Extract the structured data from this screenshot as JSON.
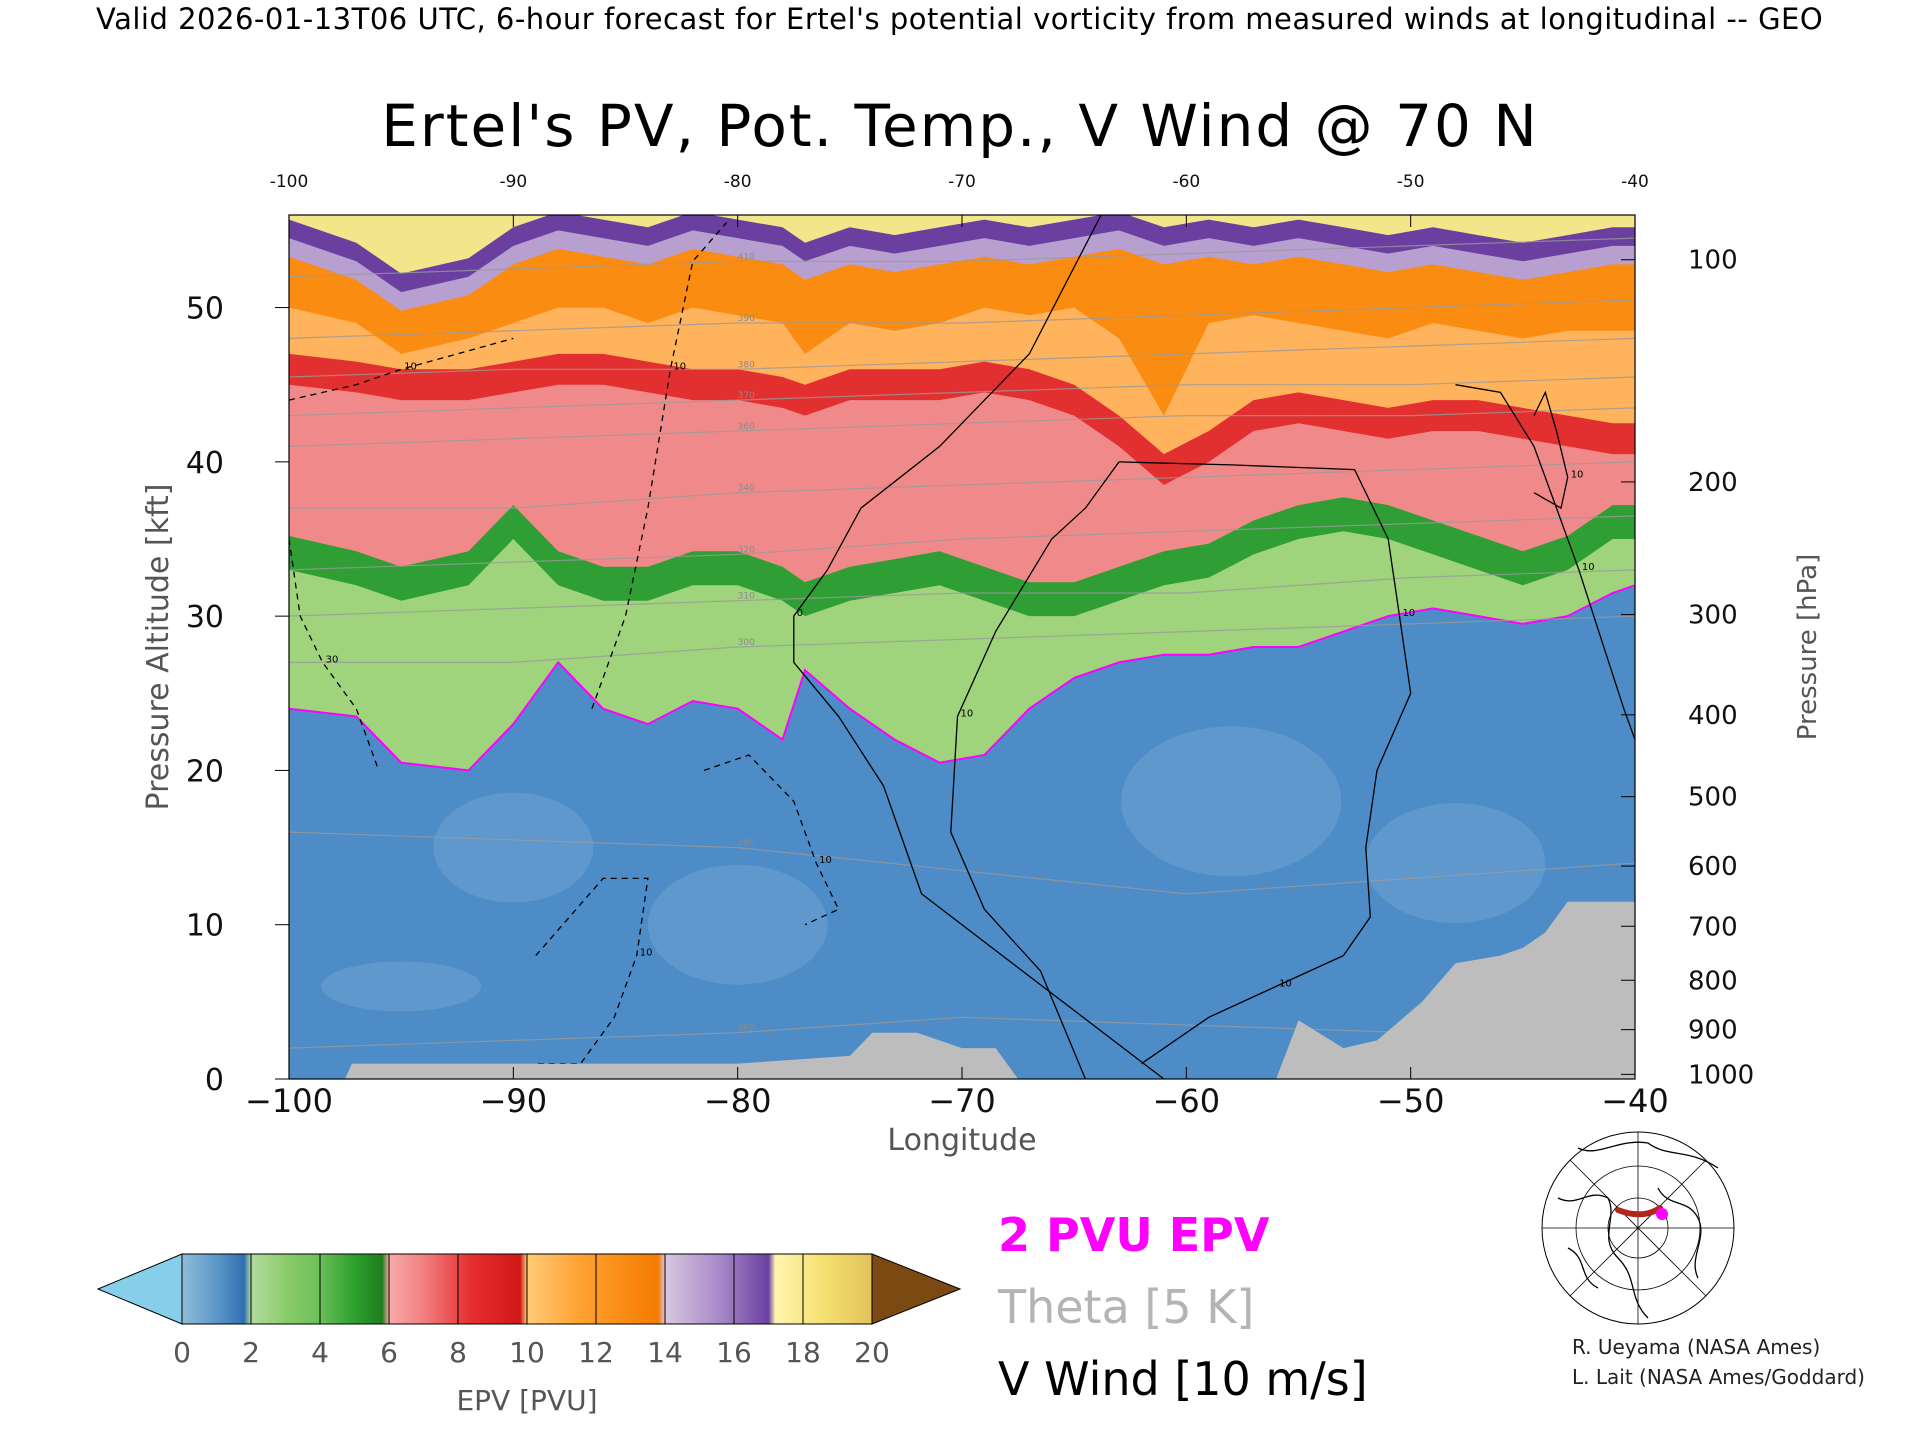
{
  "header": "Valid 2026-01-13T06 UTC, 6-hour forecast for Ertel's potential vorticity from measured winds at longitudinal -- GEO",
  "title": "Ertel's PV, Pot. Temp., V Wind @ 70 N",
  "credits": [
    "R. Ueyama (NASA Ames)",
    "L. Lait (NASA Ames/Goddard)"
  ],
  "legend": {
    "epv": "2 PVU EPV",
    "theta": "Theta [5 K]",
    "vwind": "V Wind [10 m/s]",
    "colors": {
      "epv": "#ff00ff",
      "theta": "#b4b4b4",
      "vwind": "#000000"
    }
  },
  "colorbar": {
    "label": "EPV [PVU]",
    "ticks": [
      "0",
      "2",
      "4",
      "6",
      "8",
      "10",
      "12",
      "14",
      "16",
      "18",
      "20"
    ],
    "under_color": "#87ceeb",
    "over_color": "#7b4a12"
  },
  "chart_data": {
    "type": "heatmap",
    "title": "Ertel's PV, Pot. Temp., V Wind @ 70 N",
    "xlabel": "Longitude",
    "ylabel": "Pressure Altitude [kft]",
    "y2label": "Pressure [hPa]",
    "xlim": [
      -100,
      -40
    ],
    "ylim": [
      0,
      56
    ],
    "x_ticks": [
      "-100",
      "-90",
      "-80",
      "-70",
      "-60",
      "-50",
      "-40"
    ],
    "x_ticks_top": [
      "-100",
      "-90",
      "-80",
      "-70",
      "-60",
      "-50",
      "-40"
    ],
    "y_ticks": [
      "0",
      "10",
      "20",
      "30",
      "40",
      "50"
    ],
    "pressure_ticks": [
      {
        "label": "100",
        "kft": 53.1
      },
      {
        "label": "200",
        "kft": 38.7
      },
      {
        "label": "300",
        "kft": 30.1
      },
      {
        "label": "400",
        "kft": 23.6
      },
      {
        "label": "500",
        "kft": 18.3
      },
      {
        "label": "600",
        "kft": 13.8
      },
      {
        "label": "700",
        "kft": 9.9
      },
      {
        "label": "800",
        "kft": 6.4
      },
      {
        "label": "900",
        "kft": 3.2
      },
      {
        "label": "1000",
        "kft": 0.3
      }
    ],
    "layers": [
      {
        "name": "stratosphere_top",
        "pvu_range": [
          16,
          20
        ]
      },
      {
        "name": "upper",
        "pvu_range": [
          10,
          14
        ]
      },
      {
        "name": "tropopause_region",
        "pvu_range": [
          6,
          10
        ]
      },
      {
        "name": "transition",
        "pvu_range": [
          2,
          6
        ]
      },
      {
        "name": "troposphere",
        "pvu_range": [
          0,
          2
        ]
      }
    ],
    "boundaries_kft": {
      "lon": [
        -100,
        -97,
        -95,
        -92,
        -90,
        -88,
        -86,
        -84,
        -82,
        -80,
        -78,
        -77,
        -75,
        -73,
        -71,
        -69,
        -67,
        -65,
        -63,
        -61,
        -59,
        -57,
        -55,
        -53,
        -51,
        -49,
        -47,
        -45,
        -43,
        -41,
        -40
      ],
      "pv16": [
        54.5,
        53,
        51,
        52,
        54,
        55,
        54.5,
        54,
        55,
        54.5,
        54,
        53,
        54,
        53.5,
        54,
        54.5,
        54,
        54.5,
        55,
        54,
        54.5,
        54,
        54.5,
        54,
        53.5,
        54,
        53.5,
        53,
        53.5,
        54,
        54
      ],
      "pv12": [
        50,
        49,
        47,
        48,
        49,
        50,
        50,
        49,
        50,
        49.5,
        49,
        47,
        49,
        48.5,
        49,
        50,
        49.5,
        50,
        48,
        43,
        49,
        49.5,
        49,
        48.5,
        48,
        49,
        48.5,
        48,
        48.5,
        48.5,
        48.5
      ],
      "pv8": [
        45,
        44.5,
        44,
        44,
        44.5,
        45,
        45,
        44.5,
        44,
        44,
        43.5,
        43,
        44,
        44,
        44,
        44.5,
        44,
        43,
        41,
        38.5,
        40,
        42,
        42.5,
        42,
        41.5,
        42,
        42,
        41.5,
        41,
        40.5,
        40.5
      ],
      "pv4": [
        33,
        32,
        31,
        32,
        35,
        32,
        31,
        31,
        32,
        32,
        31,
        30,
        31,
        31.5,
        32,
        31,
        30,
        30,
        31,
        32,
        32.5,
        34,
        35,
        35.5,
        35,
        34,
        33,
        32,
        33,
        35,
        35
      ],
      "pv2": [
        24,
        23.5,
        20.5,
        20,
        23,
        27,
        24,
        23,
        24.5,
        24,
        22,
        26.5,
        24,
        22,
        20.5,
        21,
        24,
        26,
        27,
        27.5,
        27.5,
        28,
        28,
        29,
        30,
        30.5,
        30,
        29.5,
        30,
        31.5,
        32
      ]
    },
    "terrain_kft": {
      "lon": [
        -100,
        -97.5,
        -97.2,
        -90,
        -80,
        -75,
        -74,
        -72,
        -70,
        -68.5,
        -67.5,
        -66,
        -65,
        -63.5,
        -61,
        -58,
        -56,
        -55,
        -53,
        -51.5,
        -49.5,
        -48,
        -46,
        -45,
        -44,
        -43,
        -41,
        -40
      ],
      "kft": [
        0,
        0,
        1,
        1,
        1,
        1.5,
        3,
        3,
        2,
        2,
        0,
        0,
        0,
        0,
        0,
        0,
        0,
        3.8,
        2,
        2.5,
        5,
        7.5,
        8,
        8.5,
        9.5,
        11.5,
        11.5,
        11.5
      ]
    },
    "v_wind_contours": [
      {
        "label": "0",
        "lon": [
          -63.8,
          -67,
          -71,
          -74.5,
          -76,
          -77.5,
          -77.5,
          -75.5,
          -73.5,
          -71.8,
          -61
        ],
        "kft": [
          56,
          47,
          41,
          37,
          33,
          30,
          27,
          23.5,
          19,
          12,
          0
        ]
      },
      {
        "label": "10",
        "lon": [
          -64.5,
          -66.5,
          -69,
          -70.5,
          -70.2,
          -68.5,
          -66,
          -64.5,
          -63
        ],
        "kft": [
          0,
          7,
          11,
          16,
          23.5,
          29,
          35,
          37,
          40
        ]
      },
      {
        "label": "10",
        "lon": [
          -63,
          -58,
          -52.5,
          -51,
          -50.5,
          -50,
          -51.5,
          -52
        ],
        "kft": [
          40,
          39.8,
          39.5,
          35,
          30,
          25,
          20,
          15
        ]
      },
      {
        "label": "10",
        "lon": [
          -52,
          -51.8,
          -53,
          -56,
          -59,
          -62
        ],
        "kft": [
          15,
          10.5,
          8,
          6,
          4,
          1
        ]
      },
      {
        "label": "10",
        "lon": [
          -48,
          -46,
          -44.5,
          -43.5,
          -42.5,
          -41.5,
          -40.5,
          -40
        ],
        "kft": [
          45,
          44.5,
          41,
          37,
          33,
          28.5,
          24,
          22
        ]
      },
      {
        "label": "10",
        "lon": [
          -44.5,
          -44,
          -43.5,
          -43,
          -43.3,
          -44.5
        ],
        "kft": [
          43,
          44.5,
          42,
          39,
          37,
          38
        ]
      },
      {
        "label": "-10",
        "lon": [
          -100,
          -97,
          -95,
          -92.5,
          -90
        ],
        "kft": [
          44,
          45,
          46,
          47,
          48
        ]
      },
      {
        "label": "-10",
        "lon": [
          -86.5,
          -85,
          -84,
          -83,
          -82,
          -80.5
        ],
        "kft": [
          24,
          30,
          37,
          46,
          53,
          55.5
        ]
      },
      {
        "label": "-10",
        "lon": [
          -81.5,
          -79.5,
          -77.5,
          -76.5,
          -75.5,
          -77
        ],
        "kft": [
          20,
          21,
          18,
          14,
          11,
          10
        ]
      },
      {
        "label": "-10",
        "lon": [
          -89,
          -86,
          -84,
          -84.5,
          -85.5,
          -87,
          -89
        ],
        "kft": [
          8,
          13,
          13,
          8,
          4,
          1,
          1
        ]
      },
      {
        "label": "-30",
        "lon": [
          -100,
          -99.5,
          -98.5,
          -97,
          -96
        ],
        "kft": [
          35,
          30,
          27,
          24,
          20
        ]
      }
    ],
    "theta_levels_K": [
      260,
      280,
      300,
      310,
      320,
      330,
      340,
      350,
      360,
      370,
      380,
      390,
      400,
      410
    ],
    "theta_contours": [
      {
        "label": "260",
        "lon": [
          -100,
          -90,
          -80,
          -70,
          -60,
          -50,
          -45
        ],
        "kft": [
          2,
          2.5,
          3,
          4,
          3.5,
          3,
          2.5
        ]
      },
      {
        "label": "280",
        "lon": [
          -100,
          -90,
          -80,
          -70,
          -60,
          -50,
          -40
        ],
        "kft": [
          16,
          15.5,
          15,
          13.5,
          12,
          13,
          14
        ]
      },
      {
        "label": "300",
        "lon": [
          -100,
          -90,
          -80,
          -70,
          -60,
          -50,
          -40
        ],
        "kft": [
          27,
          27,
          28,
          28.5,
          29,
          29.5,
          30
        ]
      },
      {
        "label": "310",
        "lon": [
          -100,
          -90,
          -80,
          -70,
          -60,
          -50,
          -40
        ],
        "kft": [
          30,
          30.5,
          31,
          31.5,
          31.5,
          32.5,
          33
        ]
      },
      {
        "label": "320",
        "lon": [
          -100,
          -90,
          -80,
          -70,
          -60,
          -50,
          -40
        ],
        "kft": [
          33,
          33.5,
          34,
          35,
          35.5,
          36,
          36.5
        ]
      },
      {
        "label": "340",
        "lon": [
          -100,
          -90,
          -80,
          -70,
          -60,
          -50,
          -40
        ],
        "kft": [
          37,
          37,
          38,
          38.5,
          39,
          39.5,
          40
        ]
      },
      {
        "label": "360",
        "lon": [
          -100,
          -90,
          -80,
          -70,
          -60,
          -50,
          -40
        ],
        "kft": [
          41,
          41.5,
          42,
          42.5,
          43,
          43,
          43.5
        ]
      },
      {
        "label": "370",
        "lon": [
          -100,
          -90,
          -80,
          -70,
          -60,
          -50,
          -40
        ],
        "kft": [
          43,
          43.5,
          44,
          44.5,
          45,
          45,
          45.5
        ]
      },
      {
        "label": "380",
        "lon": [
          -100,
          -90,
          -80,
          -70,
          -60,
          -50,
          -40
        ],
        "kft": [
          45.5,
          46,
          46,
          46.5,
          47,
          47.5,
          48
        ]
      },
      {
        "label": "390",
        "lon": [
          -100,
          -90,
          -80,
          -70,
          -60,
          -50,
          -40
        ],
        "kft": [
          48,
          48.5,
          49,
          49,
          49.5,
          50,
          50.5
        ]
      },
      {
        "label": "410",
        "lon": [
          -100,
          -90,
          -80,
          -70,
          -60,
          -50,
          -40
        ],
        "kft": [
          52,
          52.5,
          53,
          53,
          53.5,
          54,
          54.5
        ]
      }
    ],
    "grid": false,
    "legend_position": "bottom-right"
  }
}
